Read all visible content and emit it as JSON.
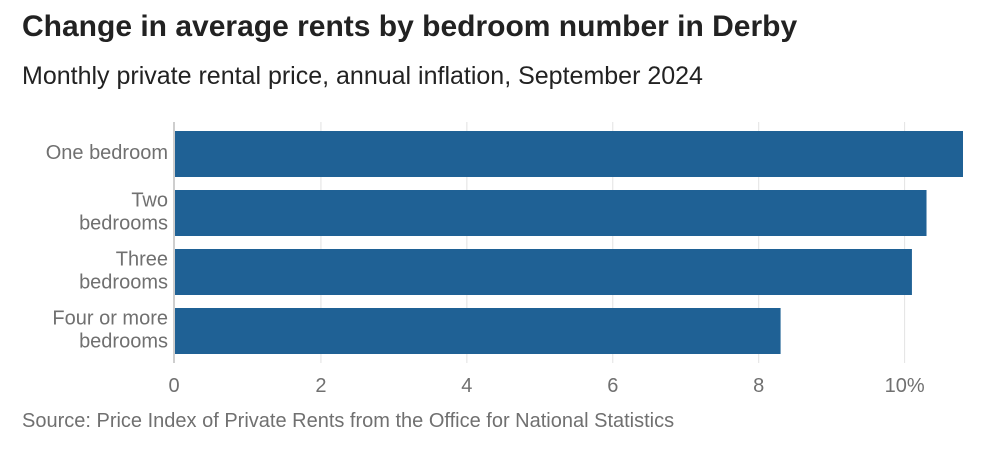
{
  "colors": {
    "bar": "#1f6195",
    "grid": "#e2e2e2",
    "axis": "#bdbdbd",
    "label": "#707070",
    "title": "#222222"
  },
  "chart_data": {
    "type": "bar",
    "orientation": "horizontal",
    "title": "Change in average rents by bedroom number in Derby",
    "subtitle": "Monthly private rental price, annual inflation, September 2024",
    "categories": [
      "One bedroom",
      "Two bedrooms",
      "Three bedrooms",
      "Four or more bedrooms"
    ],
    "category_lines": [
      [
        "One bedroom"
      ],
      [
        "Two",
        "bedrooms"
      ],
      [
        "Three",
        "bedrooms"
      ],
      [
        "Four or more",
        "bedrooms"
      ]
    ],
    "values": [
      10.8,
      10.3,
      10.1,
      8.3
    ],
    "xlim": [
      0,
      10.8
    ],
    "xticks": [
      0,
      2,
      4,
      6,
      8,
      10
    ],
    "xtick_labels": [
      "0",
      "2",
      "4",
      "6",
      "8",
      "10%"
    ],
    "grid": true,
    "legend": "none",
    "source": "Source: Price Index of Private Rents from the Office for National Statistics"
  }
}
